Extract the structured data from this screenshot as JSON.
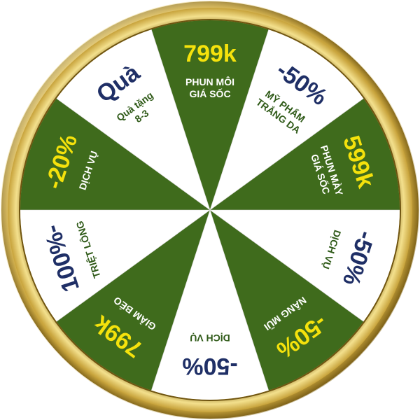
{
  "wheel": {
    "colors": {
      "green": "#3f6b1c",
      "white": "#ffffff",
      "gold": "#b8952f",
      "gold_light": "#f1dc84",
      "gold_dark": "#7d5f14",
      "navy": "#1f2f66",
      "yellow": "#f5e20c",
      "text_green": "#2f5a18",
      "text_white": "#ffffff"
    },
    "segments": [
      {
        "fill": "green",
        "big": "799k",
        "big_color": "yellow",
        "lines": [
          "PHUN MÔI",
          "GIÁ SỐC"
        ],
        "lines_color": "text_white"
      },
      {
        "fill": "white",
        "big": "-50%",
        "big_color": "navy",
        "lines": [
          "MỸ PHẨM",
          "TRẮNG DA"
        ],
        "lines_color": "text_green"
      },
      {
        "fill": "green",
        "big": "599k",
        "big_color": "yellow",
        "lines": [
          "PHUN MÀY",
          "GIÁ SỐC"
        ],
        "lines_color": "text_white"
      },
      {
        "fill": "white",
        "big": "-50%",
        "big_color": "navy",
        "lines": [
          "DỊCH VỤ"
        ],
        "lines_color": "text_green"
      },
      {
        "fill": "green",
        "big": "-50%",
        "big_color": "yellow",
        "lines": [
          "NÂNG MŨI"
        ],
        "lines_color": "text_white"
      },
      {
        "fill": "white",
        "big": "-50%",
        "big_color": "navy",
        "lines": [
          "DỊCH VỤ"
        ],
        "lines_color": "text_green"
      },
      {
        "fill": "green",
        "big": "799k",
        "big_color": "yellow",
        "lines": [
          "GIẢM BÉO"
        ],
        "lines_color": "text_white"
      },
      {
        "fill": "white",
        "big": "100%-",
        "big_color": "navy",
        "lines": [
          "TRIỆT LÔNG"
        ],
        "lines_color": "text_green"
      },
      {
        "fill": "green",
        "big": "-20%",
        "big_color": "yellow",
        "lines": [
          "DỊCH VỤ"
        ],
        "lines_color": "text_white"
      },
      {
        "fill": "white",
        "big": "Quà",
        "big_color": "navy",
        "lines": [
          "Quà tặng",
          "8-3"
        ],
        "lines_color": "text_green"
      }
    ]
  }
}
